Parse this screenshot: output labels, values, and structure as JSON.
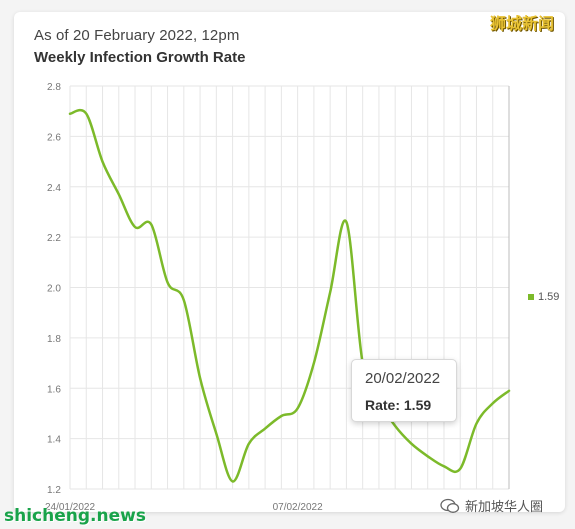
{
  "header": {
    "subtitle": "As of 20 February 2022, 12pm",
    "title": "Weekly Infection Growth Rate"
  },
  "legend": {
    "label": "1.59"
  },
  "tooltip": {
    "date": "20/02/2022",
    "rate_label": "Rate: 1.59"
  },
  "watermarks": {
    "top_right": "狮城新闻",
    "bottom_left": "shicheng.news",
    "bottom_right": "新加坡华人圈"
  },
  "colors": {
    "series": "#7cba2a",
    "grid": "#e6e6e6",
    "background": "#ffffff"
  },
  "chart_data": {
    "type": "line",
    "ylim": [
      1.2,
      2.8
    ],
    "yticks": [
      "1.2",
      "1.4",
      "1.6",
      "1.8",
      "2.0",
      "2.2",
      "2.4",
      "2.6",
      "2.8"
    ],
    "x_tick_labels": [
      {
        "date": "2022-01-24",
        "label": "24/01/2022"
      },
      {
        "date": "2022-02-07",
        "label": "07/02/2022"
      }
    ],
    "x_range": [
      "2022-01-24",
      "2022-02-20"
    ],
    "grid": true,
    "legend_position": "right",
    "series": [
      {
        "name": "1.59",
        "points": [
          [
            "2022-01-24",
            2.69
          ],
          [
            "2022-01-25",
            2.69
          ],
          [
            "2022-01-26",
            2.5
          ],
          [
            "2022-01-27",
            2.37
          ],
          [
            "2022-01-28",
            2.24
          ],
          [
            "2022-01-29",
            2.25
          ],
          [
            "2022-01-30",
            2.02
          ],
          [
            "2022-01-31",
            1.95
          ],
          [
            "2022-02-01",
            1.64
          ],
          [
            "2022-02-02",
            1.42
          ],
          [
            "2022-02-03",
            1.23
          ],
          [
            "2022-02-04",
            1.38
          ],
          [
            "2022-02-05",
            1.44
          ],
          [
            "2022-02-06",
            1.49
          ],
          [
            "2022-02-07",
            1.52
          ],
          [
            "2022-02-08",
            1.7
          ],
          [
            "2022-02-09",
            1.98
          ],
          [
            "2022-02-10",
            2.26
          ],
          [
            "2022-02-11",
            1.7
          ],
          [
            "2022-02-12",
            1.55
          ],
          [
            "2022-02-13",
            1.45
          ],
          [
            "2022-02-14",
            1.38
          ],
          [
            "2022-02-15",
            1.33
          ],
          [
            "2022-02-16",
            1.29
          ],
          [
            "2022-02-17",
            1.28
          ],
          [
            "2022-02-18",
            1.46
          ],
          [
            "2022-02-19",
            1.54
          ],
          [
            "2022-02-20",
            1.59
          ]
        ]
      }
    ]
  }
}
